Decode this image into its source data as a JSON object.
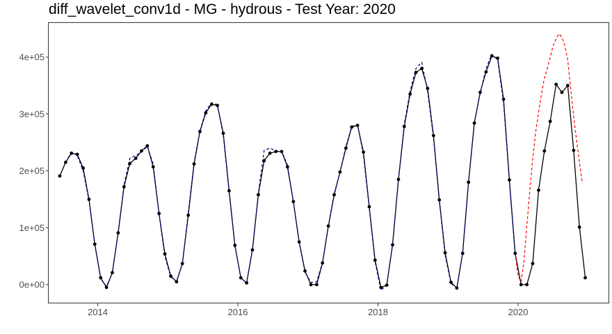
{
  "chart_data": {
    "type": "line",
    "title": "diff_wavelet_conv1d - MG - hydrous - Test Year: 2020",
    "xlabel": "",
    "ylabel": "",
    "xlim": [
      2013.3,
      2021.3
    ],
    "ylim": [
      -33000,
      460000
    ],
    "x_ticks": [
      2014,
      2016,
      2018,
      2020
    ],
    "x_tick_labels": [
      "2014",
      "2016",
      "2018",
      "2020"
    ],
    "y_ticks": [
      0,
      100000,
      200000,
      300000,
      400000
    ],
    "y_tick_labels": [
      "0e+00",
      "1e+05",
      "2e+05",
      "3e+05",
      "4e+05"
    ],
    "grid": false,
    "legend": "none",
    "series": [
      {
        "style": "solid-with-points",
        "color": "#000000",
        "x": [
          2013.458,
          2013.542,
          2013.625,
          2013.708,
          2013.792,
          2013.875,
          2013.958,
          2014.042,
          2014.125,
          2014.208,
          2014.292,
          2014.375,
          2014.458,
          2014.542,
          2014.625,
          2014.708,
          2014.792,
          2014.875,
          2014.958,
          2015.042,
          2015.125,
          2015.208,
          2015.292,
          2015.375,
          2015.458,
          2015.542,
          2015.625,
          2015.708,
          2015.792,
          2015.875,
          2015.958,
          2016.042,
          2016.125,
          2016.208,
          2016.292,
          2016.375,
          2016.458,
          2016.542,
          2016.625,
          2016.708,
          2016.792,
          2016.875,
          2016.958,
          2017.042,
          2017.125,
          2017.208,
          2017.292,
          2017.375,
          2017.458,
          2017.542,
          2017.625,
          2017.708,
          2017.792,
          2017.875,
          2017.958,
          2018.042,
          2018.125,
          2018.208,
          2018.292,
          2018.375,
          2018.458,
          2018.542,
          2018.625,
          2018.708,
          2018.792,
          2018.875,
          2018.958,
          2019.042,
          2019.125,
          2019.208,
          2019.292,
          2019.375,
          2019.458,
          2019.542,
          2019.625,
          2019.708,
          2019.792,
          2019.875,
          2019.958,
          2020.042,
          2020.125,
          2020.208,
          2020.292,
          2020.375,
          2020.458,
          2020.542,
          2020.625,
          2020.708,
          2020.792,
          2020.875,
          2020.958
        ],
        "values": [
          191000,
          215000,
          231000,
          229000,
          205000,
          150000,
          71000,
          12000,
          -5000,
          21000,
          91000,
          172000,
          213000,
          222000,
          235000,
          244000,
          207000,
          125000,
          54000,
          15000,
          5000,
          37000,
          122000,
          212000,
          269000,
          302000,
          317000,
          315000,
          266000,
          165000,
          69000,
          12000,
          3000,
          61000,
          158000,
          218000,
          231000,
          234000,
          234000,
          207000,
          146000,
          75000,
          24000,
          0,
          0,
          38000,
          103000,
          158000,
          198000,
          240000,
          277000,
          280000,
          233000,
          137000,
          43000,
          -5000,
          -1000,
          70000,
          185000,
          278000,
          335000,
          373000,
          380000,
          345000,
          262000,
          149000,
          56000,
          4000,
          -6000,
          55000,
          180000,
          284000,
          338000,
          374000,
          402000,
          398000,
          326000,
          184000,
          55000,
          0,
          0,
          37000,
          166000,
          235000,
          287000,
          352000,
          338000,
          350000,
          236000,
          101000,
          12000
        ]
      },
      {
        "style": "dashed",
        "color": "#00008b",
        "x": [
          2013.542,
          2013.625,
          2013.708,
          2013.792,
          2013.875,
          2013.958,
          2014.042,
          2014.125,
          2014.208,
          2014.292,
          2014.375,
          2014.458,
          2014.542,
          2014.625,
          2014.708,
          2014.792,
          2014.875,
          2014.958,
          2015.042,
          2015.125,
          2015.208,
          2015.292,
          2015.375,
          2015.458,
          2015.542,
          2015.625,
          2015.708,
          2015.792,
          2015.875,
          2015.958,
          2016.042,
          2016.125,
          2016.208,
          2016.292,
          2016.375,
          2016.458,
          2016.542,
          2016.625,
          2016.708,
          2016.792,
          2016.875,
          2016.958,
          2017.042,
          2017.125,
          2017.208,
          2017.292,
          2017.375,
          2017.458,
          2017.542,
          2017.625,
          2017.708,
          2017.792,
          2017.875,
          2017.958,
          2018.042,
          2018.125,
          2018.208,
          2018.292,
          2018.375,
          2018.458,
          2018.542,
          2018.625,
          2018.708,
          2018.792,
          2018.875,
          2018.958,
          2019.042,
          2019.125,
          2019.208,
          2019.292,
          2019.375,
          2019.458,
          2019.542,
          2019.625,
          2019.708,
          2019.792,
          2019.875,
          2019.958
        ],
        "values": [
          215000,
          233000,
          227000,
          200000,
          148000,
          72000,
          10000,
          -3000,
          20000,
          92000,
          175000,
          222000,
          227000,
          233000,
          243000,
          212000,
          124000,
          50000,
          13000,
          6000,
          36000,
          126000,
          215000,
          270000,
          305000,
          320000,
          316000,
          262000,
          163000,
          68000,
          12000,
          3000,
          62000,
          160000,
          236000,
          240000,
          235000,
          235000,
          210000,
          146000,
          74000,
          22000,
          4000,
          5000,
          39000,
          104000,
          160000,
          198000,
          243000,
          278000,
          282000,
          228000,
          135000,
          40000,
          -10000,
          0,
          70000,
          185000,
          282000,
          340000,
          380000,
          391000,
          340000,
          258000,
          147000,
          52000,
          2000,
          -6000,
          56000,
          179000,
          285000,
          336000,
          380000,
          405000,
          395000,
          320000,
          181000,
          52000
        ]
      },
      {
        "style": "dashed",
        "color": "#ff0000",
        "x": [
          2019.958,
          2020.0,
          2020.042,
          2020.083,
          2020.125,
          2020.167,
          2020.208,
          2020.25,
          2020.292,
          2020.333,
          2020.375,
          2020.417,
          2020.458,
          2020.5,
          2020.542,
          2020.583,
          2020.625,
          2020.667,
          2020.708,
          2020.75,
          2020.792,
          2020.833,
          2020.875,
          2020.917
        ],
        "values": [
          55000,
          15000,
          5000,
          40000,
          105000,
          165000,
          222000,
          268000,
          303000,
          335000,
          363000,
          380000,
          400000,
          420000,
          432000,
          441000,
          435000,
          420000,
          395000,
          345000,
          295000,
          255000,
          215000,
          178000
        ]
      }
    ]
  }
}
